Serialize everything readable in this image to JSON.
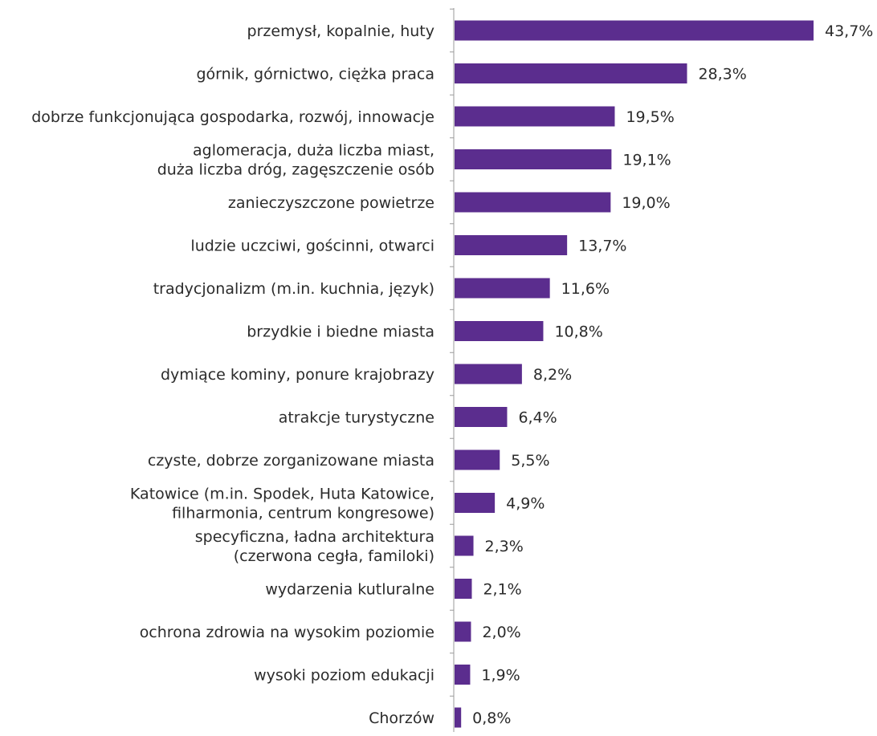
{
  "chart_data": {
    "type": "bar",
    "orientation": "horizontal",
    "title": "",
    "xlabel": "",
    "ylabel": "",
    "xlim": [
      0,
      43.7
    ],
    "grid": false,
    "legend": "none",
    "bar_color": "#5b2d8e",
    "categories": [
      [
        "przemysł, kopalnie, huty"
      ],
      [
        "górnik, górnictwo, ciężka praca"
      ],
      [
        "dobrze funkcjonująca gospodarka, rozwój, innowacje"
      ],
      [
        "aglomeracja, duża liczba miast,",
        "duża liczba dróg, zagęszczenie osób"
      ],
      [
        "zanieczyszczone powietrze"
      ],
      [
        "ludzie uczciwi, gościnni, otwarci"
      ],
      [
        "tradycjonalizm (m.in. kuchnia, język)"
      ],
      [
        "brzydkie i biedne miasta"
      ],
      [
        "dymiące kominy, ponure krajobrazy"
      ],
      [
        "atrakcje turystyczne"
      ],
      [
        "czyste, dobrze zorganizowane miasta"
      ],
      [
        "Katowice (m.in. Spodek, Huta Katowice,",
        "filharmonia, centrum kongresowe)"
      ],
      [
        "specyficzna, ładna architektura",
        "(czerwona cegła, familoki)"
      ],
      [
        "wydarzenia kutluralne"
      ],
      [
        "ochrona zdrowia na wysokim poziomie"
      ],
      [
        "wysoki poziom edukacji"
      ],
      [
        "Chorzów"
      ]
    ],
    "values": [
      43.7,
      28.3,
      19.5,
      19.1,
      19.0,
      13.7,
      11.6,
      10.8,
      8.2,
      6.4,
      5.5,
      4.9,
      2.3,
      2.1,
      2.0,
      1.9,
      0.8
    ],
    "value_labels": [
      "43,7%",
      "28,3%",
      "19,5%",
      "19,1%",
      "19,0%",
      "13,7%",
      "11,6%",
      "10,8%",
      "8,2%",
      "6,4%",
      "5,5%",
      "4,9%",
      "2,3%",
      "2,1%",
      "2,0%",
      "1,9%",
      "0,8%"
    ]
  }
}
